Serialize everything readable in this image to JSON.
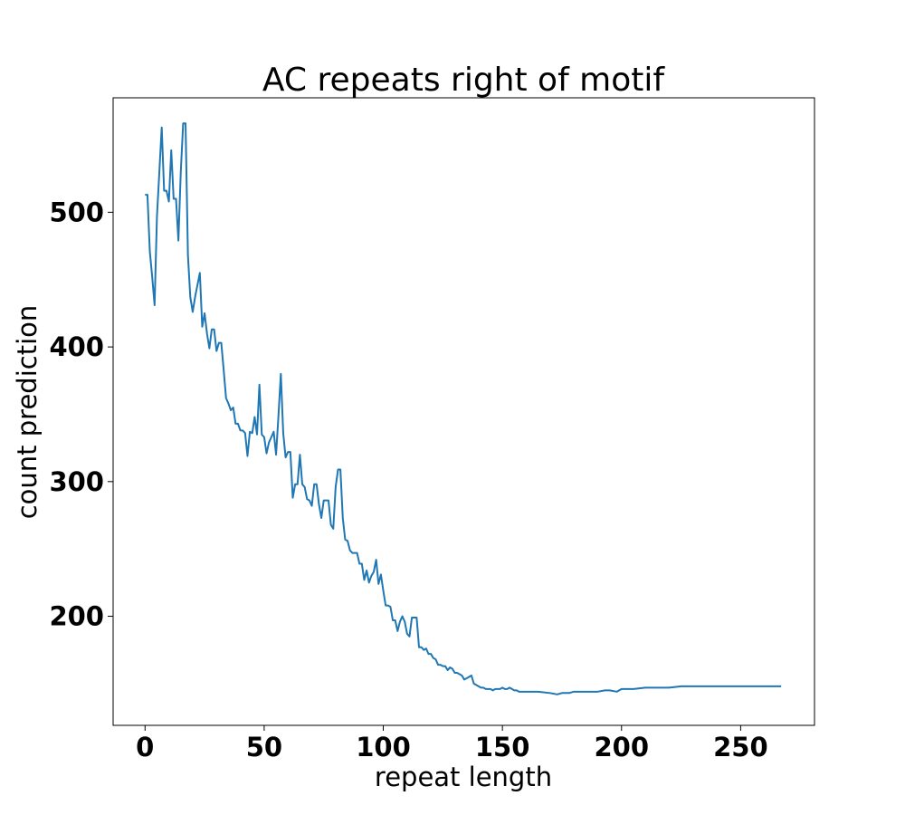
{
  "chart_data": {
    "type": "line",
    "title": "AC repeats right of motif",
    "xlabel": "repeat length",
    "ylabel": "count prediction",
    "xlim": [
      -13.4,
      281
    ],
    "ylim": [
      119,
      585
    ],
    "xticks": [
      0,
      50,
      100,
      150,
      200,
      250
    ],
    "yticks": [
      200,
      300,
      400,
      500
    ],
    "grid": false,
    "legend": "none",
    "series": [
      {
        "color": "#1f77b4",
        "x": [
          0,
          1,
          2,
          3,
          4,
          5,
          6,
          7,
          8,
          9,
          10,
          11,
          12,
          13,
          14,
          15,
          16,
          17,
          18,
          19,
          20,
          21,
          22,
          23,
          24,
          25,
          26,
          27,
          28,
          29,
          30,
          31,
          32,
          33,
          34,
          35,
          36,
          37,
          38,
          39,
          40,
          41,
          42,
          43,
          44,
          45,
          46,
          47,
          48,
          49,
          50,
          51,
          52,
          53,
          54,
          55,
          56,
          57,
          58,
          59,
          60,
          61,
          62,
          63,
          64,
          65,
          66,
          67,
          68,
          69,
          70,
          71,
          72,
          73,
          74,
          75,
          76,
          77,
          78,
          79,
          80,
          81,
          82,
          83,
          84,
          85,
          86,
          87,
          88,
          89,
          90,
          91,
          92,
          93,
          94,
          95,
          96,
          97,
          98,
          99,
          100,
          101,
          102,
          103,
          104,
          105,
          106,
          107,
          108,
          109,
          110,
          111,
          112,
          113,
          114,
          115,
          116,
          117,
          118,
          119,
          120,
          121,
          122,
          123,
          124,
          125,
          126,
          127,
          128,
          129,
          130,
          131,
          132,
          133,
          134,
          135,
          136,
          137,
          138,
          139,
          140,
          141,
          142,
          143,
          144,
          145,
          146,
          147,
          148,
          149,
          150,
          151,
          152,
          153,
          154,
          155,
          156,
          157,
          158,
          160,
          165,
          170,
          173,
          175,
          178,
          180,
          185,
          190,
          193,
          195,
          198,
          200,
          203,
          205,
          210,
          215,
          218,
          220,
          225,
          230,
          235,
          240,
          245,
          250,
          255,
          260,
          265,
          267
        ],
        "y": [
          513,
          513,
          471,
          452,
          431,
          497,
          530,
          563,
          516,
          516,
          508,
          546,
          510,
          510,
          479,
          530,
          566,
          566,
          468,
          437,
          426,
          437,
          446,
          455,
          415,
          425,
          410,
          399,
          413,
          413,
          397,
          403,
          403,
          383,
          362,
          358,
          353,
          355,
          343,
          343,
          338,
          338,
          336,
          319,
          337,
          336,
          348,
          335,
          372,
          335,
          333,
          321,
          329,
          333,
          337,
          320,
          349,
          380,
          336,
          318,
          322,
          322,
          288,
          298,
          298,
          320,
          298,
          296,
          287,
          286,
          282,
          298,
          298,
          283,
          273,
          286,
          286,
          286,
          268,
          265,
          296,
          309,
          309,
          273,
          257,
          256,
          249,
          247,
          247,
          247,
          239,
          239,
          227,
          234,
          225,
          230,
          233,
          242,
          224,
          231,
          219,
          208,
          208,
          207,
          197,
          197,
          189,
          196,
          200,
          196,
          187,
          185,
          199,
          199,
          199,
          177,
          177,
          175,
          176,
          172,
          172,
          169,
          168,
          164,
          164,
          163,
          163,
          160,
          162,
          161,
          158,
          158,
          157,
          156,
          153,
          154,
          155,
          156,
          150,
          149,
          148,
          147,
          147,
          146,
          146,
          146,
          145,
          146,
          146,
          146,
          147,
          146,
          146,
          147,
          146,
          145,
          145,
          144,
          144,
          144,
          144,
          143,
          142,
          143,
          143,
          144,
          144,
          144,
          145,
          145,
          144,
          146,
          146,
          146,
          147,
          147,
          147,
          147,
          148,
          148,
          148,
          148,
          148,
          148,
          148,
          148,
          148,
          148
        ]
      }
    ]
  }
}
